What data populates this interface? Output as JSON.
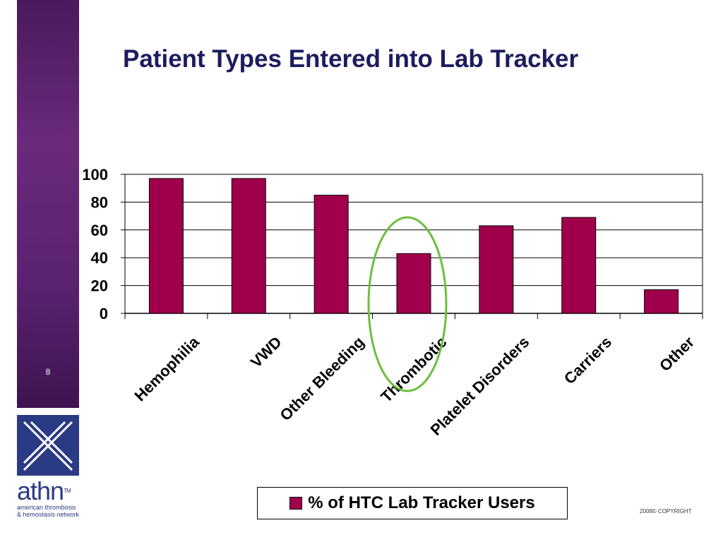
{
  "slide": {
    "title": "Patient Types Entered into Lab Tracker",
    "number": "8",
    "copyright": "2008© COPYRIGHT"
  },
  "logo": {
    "word": "athn",
    "tm": "TM",
    "sub_line1": "american thrombosis",
    "sub_line2": "& hemostasis network"
  },
  "colors": {
    "bar": "#a0004b",
    "title": "#1c1c5e",
    "highlight_circle": "#6dbf3c",
    "sidebar": "#5a2270",
    "logo": "#2b3a84"
  },
  "chart_data": {
    "type": "bar",
    "categories": [
      "Hemophilia",
      "VWD",
      "Other Bleeding",
      "Thrombotic",
      "Platelet Disorders",
      "Carriers",
      "Other"
    ],
    "series": [
      {
        "name": "% of HTC Lab Tracker Users",
        "values": [
          97,
          97,
          85,
          43,
          63,
          69,
          17
        ]
      }
    ],
    "ylim": [
      0,
      100
    ],
    "yticks": [
      0,
      20,
      40,
      60,
      80,
      100
    ],
    "grid": true,
    "legend_position": "bottom",
    "highlighted_category": "Thrombotic"
  }
}
